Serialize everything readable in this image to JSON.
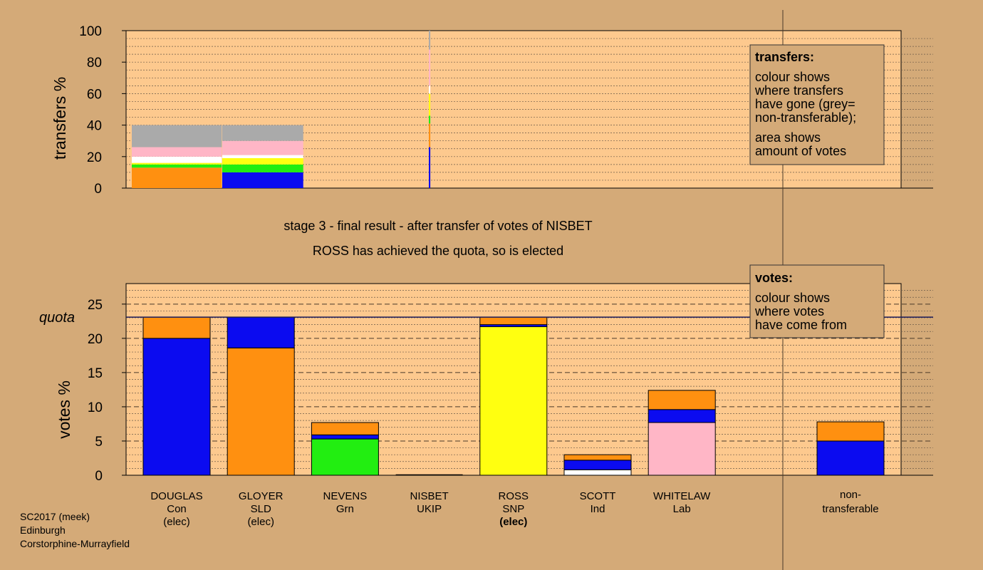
{
  "colors": {
    "background": "#d4aa78",
    "plot_area": "#fdc98e",
    "legend_box": "#d4aa78",
    "Con": "#0b0bf0",
    "SLD": "#ff9010",
    "Grn": "#22ee11",
    "SNP": "#ffff10",
    "Ind": "#ffffff",
    "Lab": "#ffb6c6",
    "UKIP": "#b07ad8",
    "non_transferable": "#aaaaaa"
  },
  "header": {
    "stage_title": "stage 3 - final result - after transfer of votes of NISBET",
    "stage_subtitle": "ROSS has achieved the quota, so is elected"
  },
  "footer": {
    "line1": "SC2017 (meek)",
    "line2": "Edinburgh",
    "line3": "Corstorphine-Murrayfield"
  },
  "legend_transfers": {
    "title": "transfers:",
    "lines": [
      "colour shows",
      "where transfers",
      "have gone (grey=",
      "non-transferable);"
    ],
    "lines2": [
      "area shows",
      "amount of votes"
    ]
  },
  "legend_votes": {
    "title": "votes:",
    "lines": [
      "colour shows",
      "where votes",
      "have come from"
    ]
  },
  "chart_data": [
    {
      "type": "bar",
      "name": "transfers",
      "ylabel": "transfers %",
      "ylim": [
        0,
        100
      ],
      "yticks": [
        0,
        20,
        40,
        60,
        80,
        100
      ],
      "blocks": [
        {
          "width_share": 0.3,
          "segments": [
            {
              "party": "SLD",
              "from": 0,
              "to": 13
            },
            {
              "party": "Grn",
              "from": 13,
              "to": 15
            },
            {
              "party": "SNP",
              "from": 15,
              "to": 16
            },
            {
              "party": "Ind",
              "from": 16,
              "to": 20
            },
            {
              "party": "Lab",
              "from": 20,
              "to": 26
            },
            {
              "party": "non_transferable",
              "from": 26,
              "to": 40
            }
          ]
        },
        {
          "width_share": 0.27,
          "segments": [
            {
              "party": "Con",
              "from": 0,
              "to": 10
            },
            {
              "party": "Grn",
              "from": 10,
              "to": 15
            },
            {
              "party": "SNP",
              "from": 15,
              "to": 19
            },
            {
              "party": "Ind",
              "from": 19,
              "to": 21
            },
            {
              "party": "Lab",
              "from": 21,
              "to": 30
            },
            {
              "party": "non_transferable",
              "from": 30,
              "to": 40
            }
          ]
        },
        {
          "width_share": 0.005,
          "segments": [
            {
              "party": "Con",
              "from": 0,
              "to": 26
            },
            {
              "party": "SLD",
              "from": 26,
              "to": 41
            },
            {
              "party": "Grn",
              "from": 41,
              "to": 46
            },
            {
              "party": "SNP",
              "from": 46,
              "to": 60
            },
            {
              "party": "Ind",
              "from": 60,
              "to": 65
            },
            {
              "party": "Lab",
              "from": 65,
              "to": 88
            },
            {
              "party": "non_transferable",
              "from": 88,
              "to": 100
            }
          ]
        }
      ]
    },
    {
      "type": "bar",
      "name": "votes",
      "ylabel": "votes %",
      "ylim": [
        0,
        28
      ],
      "yticks": [
        0,
        5,
        10,
        15,
        20,
        25
      ],
      "quota": 23.1,
      "quota_label": "quota",
      "categories": [
        {
          "name": "DOUGLAS",
          "party": "Con",
          "status": "(elec)",
          "bold_status": false,
          "segments": [
            {
              "party": "Con",
              "value": 20.0
            },
            {
              "party": "SLD",
              "value": 3.1
            }
          ]
        },
        {
          "name": "GLOYER",
          "party": "SLD",
          "status": "(elec)",
          "bold_status": false,
          "segments": [
            {
              "party": "SLD",
              "value": 18.6
            },
            {
              "party": "Con",
              "value": 4.5
            }
          ]
        },
        {
          "name": "NEVENS",
          "party": "Grn",
          "status": "",
          "bold_status": false,
          "segments": [
            {
              "party": "Grn",
              "value": 5.3
            },
            {
              "party": "Con",
              "value": 0.6
            },
            {
              "party": "SLD",
              "value": 1.8
            }
          ]
        },
        {
          "name": "NISBET",
          "party": "UKIP",
          "status": "",
          "bold_status": false,
          "segments": [
            {
              "party": "UKIP",
              "value": 0.0
            }
          ]
        },
        {
          "name": "ROSS",
          "party": "SNP",
          "status": "(elec)",
          "bold_status": true,
          "segments": [
            {
              "party": "SNP",
              "value": 21.7
            },
            {
              "party": "Con",
              "value": 0.3
            },
            {
              "party": "SLD",
              "value": 1.1
            }
          ]
        },
        {
          "name": "SCOTT",
          "party": "Ind",
          "status": "",
          "bold_status": false,
          "segments": [
            {
              "party": "Ind",
              "value": 0.8
            },
            {
              "party": "Con",
              "value": 1.4
            },
            {
              "party": "SLD",
              "value": 0.8
            }
          ]
        },
        {
          "name": "WHITELAW",
          "party": "Lab",
          "status": "",
          "bold_status": false,
          "segments": [
            {
              "party": "Lab",
              "value": 7.7
            },
            {
              "party": "Con",
              "value": 1.9
            },
            {
              "party": "SLD",
              "value": 2.8
            }
          ]
        }
      ],
      "non_transferable": {
        "label_line1": "non-",
        "label_line2": "transferable",
        "segments": [
          {
            "party": "Con",
            "value": 5.0
          },
          {
            "party": "SLD",
            "value": 2.8
          }
        ]
      }
    }
  ]
}
